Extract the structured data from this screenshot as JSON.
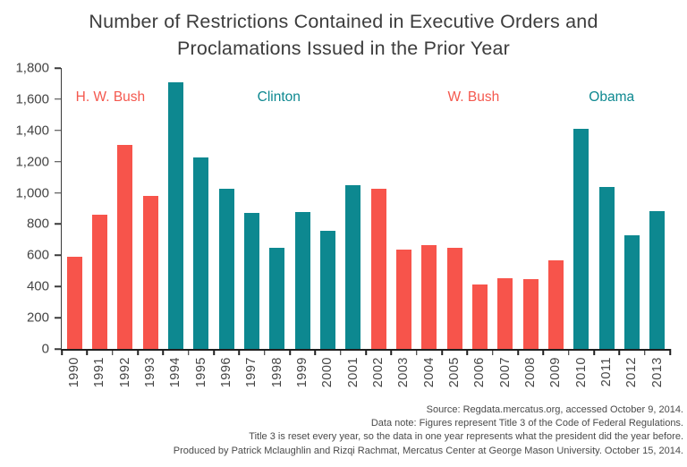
{
  "title": {
    "line1": "Number of Restrictions Contained in Executive Orders and",
    "line2": "Proclamations Issued in the Prior Year"
  },
  "chart_data": {
    "type": "bar",
    "title": "Number of Restrictions Contained in Executive Orders and Proclamations Issued in the Prior Year",
    "xlabel": "",
    "ylabel": "",
    "x": [
      1990,
      1991,
      1992,
      1993,
      1994,
      1995,
      1996,
      1997,
      1998,
      1999,
      2000,
      2001,
      2002,
      2003,
      2004,
      2005,
      2006,
      2007,
      2008,
      2009,
      2010,
      2011,
      2012,
      2013
    ],
    "values": [
      590,
      860,
      1305,
      980,
      1710,
      1225,
      1025,
      870,
      645,
      880,
      755,
      1050,
      1025,
      635,
      665,
      650,
      415,
      455,
      445,
      570,
      1410,
      1035,
      730,
      885
    ],
    "parties": [
      "R",
      "R",
      "R",
      "R",
      "D",
      "D",
      "D",
      "D",
      "D",
      "D",
      "D",
      "D",
      "R",
      "R",
      "R",
      "R",
      "R",
      "R",
      "R",
      "R",
      "D",
      "D",
      "D",
      "D"
    ],
    "colors": {
      "R": "#F7544B",
      "D": "#0D8890"
    },
    "ylim": [
      0,
      1800
    ],
    "ytick_step": 200,
    "grid": "off",
    "legend": "none",
    "annotations": [
      {
        "label": "H. W. Bush",
        "party": "R",
        "color": "#F4584E",
        "x_pct": 8.0
      },
      {
        "label": "Clinton",
        "party": "D",
        "color": "#0D8890",
        "x_pct": 35.7
      },
      {
        "label": "W. Bush",
        "party": "R",
        "color": "#F4584E",
        "x_pct": 67.7
      },
      {
        "label": "Obama",
        "party": "D",
        "color": "#0D8890",
        "x_pct": 90.4
      }
    ]
  },
  "footer": {
    "lines": [
      "Source: Regdata.mercatus.org, accessed October 9, 2014.",
      "Data note: Figures represent Title 3 of the Code of Federal Regulations.",
      "Title 3 is reset every year, so the data in one year represents what the president did the year before.",
      "Produced by Patrick Mclaughlin and Rizqi Rachmat, Mercatus Center at George Mason University. October 15, 2014."
    ]
  }
}
